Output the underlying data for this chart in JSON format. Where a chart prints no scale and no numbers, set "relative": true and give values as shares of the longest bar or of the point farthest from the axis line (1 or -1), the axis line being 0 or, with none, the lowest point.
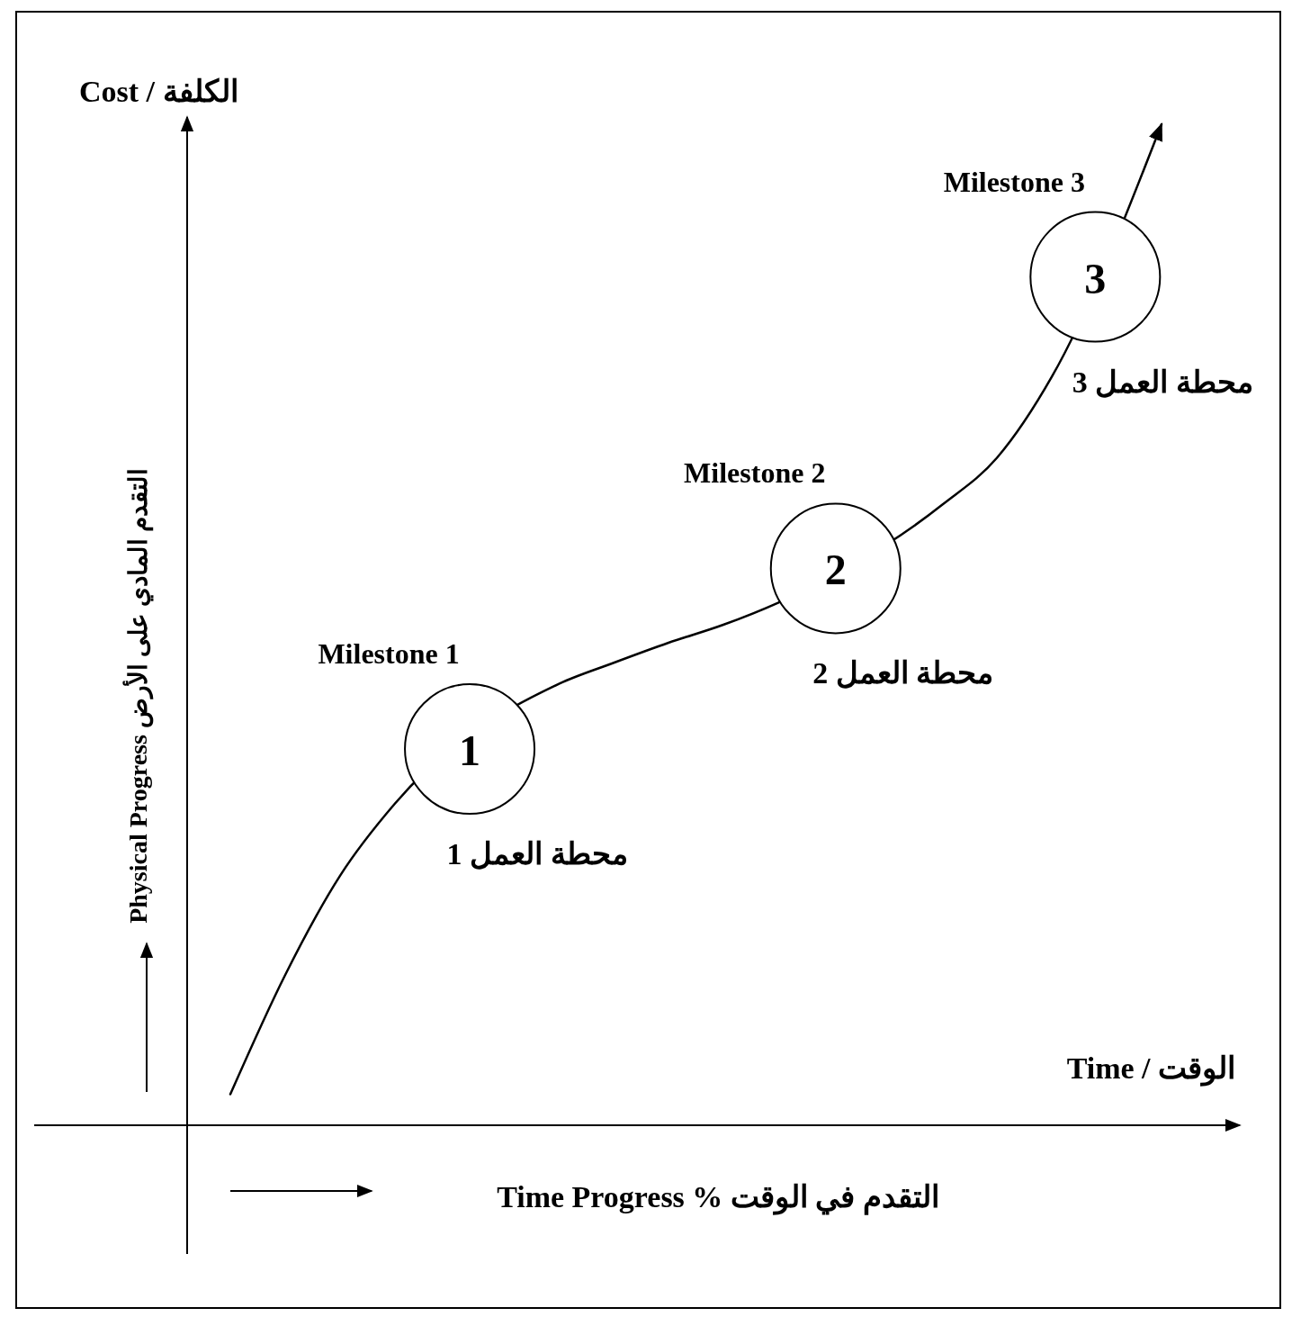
{
  "chart_data": {
    "type": "line",
    "relative": true,
    "xlabel": "Time / الوقت",
    "ylabel": "Cost / الكلفة",
    "categories": [
      null,
      null,
      null,
      null,
      null,
      null,
      null,
      null,
      null,
      null,
      null,
      null,
      null,
      null,
      null,
      null,
      null,
      null
    ],
    "series": [
      {
        "color": "#000000",
        "values": [
          0.031,
          0.15,
          0.249,
          0.321,
          null,
          null,
          0.441,
          0.462,
          0.482,
          0.5,
          0.522,
          null,
          null,
          0.62,
          0.667,
          0.748,
          null,
          1
        ]
      }
    ],
    "marker": "none",
    "line_style": "solid",
    "grid": false,
    "annotations": [
      "Milestone 1",
      "1",
      "محطة العمل 1",
      "Milestone 2",
      "2",
      "محطة العمل 2",
      "Milestone 3",
      "3",
      "محطة العمل 3",
      "Physical Progress  التقدم المادي على الأرض",
      "Time Progress  %  التقدم في الوقت"
    ]
  }
}
